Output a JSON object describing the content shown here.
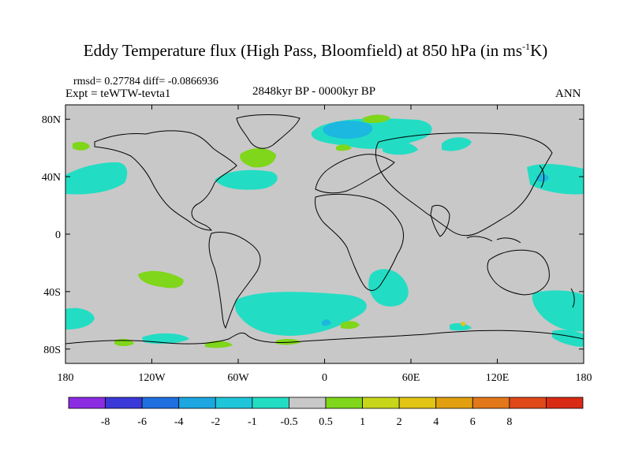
{
  "title": {
    "main": "Eddy Temperature flux (High Pass, Bloomfield) at 850 hPa (in ms",
    "superscript": "-1",
    "suffix": "K)"
  },
  "stats_line": "rmsd= 0.27784 diff= -0.0866936",
  "experiment_label": "Expt = teWTW-tevta1",
  "period_label": "2848kyr BP - 0000kyr BP",
  "season_label": "ANN",
  "axes": {
    "lat_labels": [
      "80N",
      "40N",
      "0",
      "40S",
      "80S"
    ],
    "lon_labels": [
      "180",
      "120W",
      "60W",
      "0",
      "60E",
      "120E",
      "180"
    ]
  },
  "colorbar": {
    "colors": [
      "#8B2BE2",
      "#3A38D8",
      "#1F6FE0",
      "#1CA7E0",
      "#1FC5D9",
      "#22DDC4",
      "#C8C8C8",
      "#7FD61A",
      "#C8D61A",
      "#E2C414",
      "#E2A010",
      "#E2781A",
      "#E04818",
      "#D82A14"
    ],
    "labels": [
      "-8",
      "-6",
      "-4",
      "-2",
      "-1",
      "-0.5",
      "0.5",
      "1",
      "2",
      "4",
      "6",
      "8"
    ]
  },
  "colors": {
    "land_background": "#C8C8C8",
    "negative_anomaly": "#22DDC4",
    "negative_strong": "#1CB8E0",
    "positive_anomaly": "#7FD61A"
  }
}
